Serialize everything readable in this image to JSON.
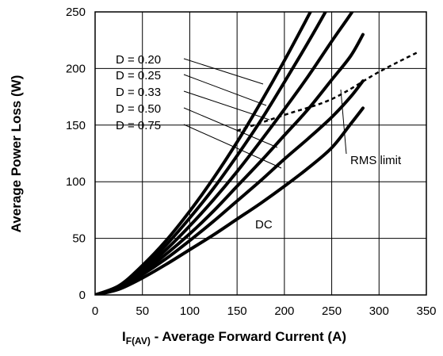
{
  "chart_data": {
    "type": "line",
    "xlabel_main": "I",
    "xlabel_sub": "F(AV)",
    "xlabel_rest": " - Average Forward Current (A)",
    "ylabel": "Average Power Loss (W)",
    "xlim": [
      0,
      350
    ],
    "ylim": [
      0,
      250
    ],
    "xticks": [
      0,
      50,
      100,
      150,
      200,
      250,
      300,
      350
    ],
    "yticks": [
      0,
      50,
      100,
      150,
      200,
      250
    ],
    "grid": true,
    "series": [
      {
        "name": "D = 0.20",
        "x": [
          0,
          25,
          50,
          75,
          100,
          125,
          150,
          175,
          200,
          225,
          240
        ],
        "y": [
          0,
          8,
          26,
          48,
          74,
          103,
          135,
          170,
          207,
          246,
          270
        ]
      },
      {
        "name": "D = 0.25",
        "x": [
          0,
          25,
          50,
          75,
          100,
          125,
          150,
          175,
          200,
          225,
          250,
          262
        ],
        "y": [
          0,
          8,
          24,
          44,
          68,
          94,
          123,
          154,
          188,
          223,
          260,
          280
        ]
      },
      {
        "name": "D = 0.33",
        "x": [
          0,
          25,
          50,
          75,
          100,
          125,
          150,
          175,
          200,
          225,
          250,
          270,
          283
        ],
        "y": [
          0,
          7,
          22,
          40,
          61,
          84,
          109,
          136,
          164,
          193,
          224,
          248,
          265
        ]
      },
      {
        "name": "D = 0.50",
        "x": [
          0,
          25,
          50,
          75,
          100,
          125,
          150,
          175,
          200,
          225,
          250,
          270,
          283
        ],
        "y": [
          0,
          7,
          20,
          36,
          54,
          74,
          96,
          118,
          141,
          164,
          190,
          211,
          230
        ]
      },
      {
        "name": "D = 0.75",
        "x": [
          0,
          25,
          50,
          75,
          100,
          125,
          150,
          175,
          200,
          225,
          250,
          270,
          283
        ],
        "y": [
          0,
          6,
          18,
          32,
          48,
          65,
          83,
          101,
          120,
          138,
          157,
          175,
          189
        ]
      },
      {
        "name": "DC",
        "x": [
          0,
          25,
          50,
          75,
          100,
          125,
          150,
          175,
          200,
          225,
          250,
          270,
          283
        ],
        "y": [
          0,
          5,
          15,
          27,
          40,
          53,
          67,
          81,
          96,
          112,
          130,
          151,
          165
        ]
      }
    ],
    "rms_limit": {
      "name": "RMS limit",
      "x": [
        150,
        200,
        250,
        300,
        340
      ],
      "y": [
        145,
        159,
        173,
        197,
        214
      ]
    },
    "legend_labels": [
      "D = 0.20",
      "D = 0.25",
      "D = 0.33",
      "D = 0.50",
      "D = 0.75"
    ],
    "dc_label": "DC",
    "rms_label": "RMS limit"
  }
}
